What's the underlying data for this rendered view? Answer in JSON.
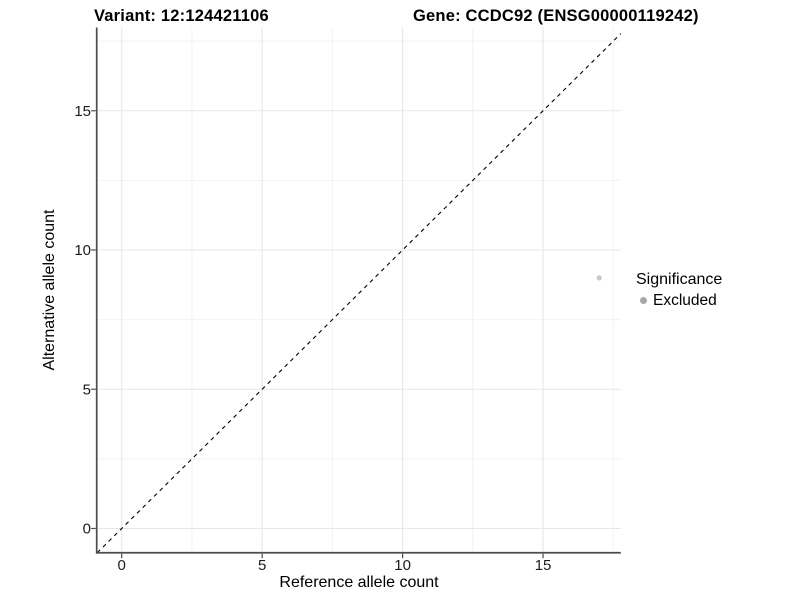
{
  "chart_data": {
    "type": "scatter",
    "title_left": "Variant: 12:124421106",
    "title_right": "Gene: CCDC92 (ENSG00000119242)",
    "xlabel": "Reference allele count",
    "ylabel": "Alternative allele count",
    "x_ticks": [
      0,
      5,
      10,
      15
    ],
    "y_ticks": [
      0,
      5,
      10,
      15
    ],
    "xlim": [
      -0.89,
      17.77
    ],
    "ylim": [
      -0.87,
      17.99
    ],
    "grid": {
      "major_color": "#e7e7e7",
      "minor_color": "#f2f2f2",
      "background": "#ffffff"
    },
    "identity_line": {
      "equation": "y = x",
      "style": "dashed",
      "color": "#000000"
    },
    "points": [
      {
        "x": 17,
        "y": 9,
        "significance": "Excluded",
        "color": "#c8c8c8",
        "radius": 2.6
      }
    ],
    "legend": {
      "title": "Significance",
      "position": "right-center",
      "entries": [
        {
          "label": "Excluded",
          "marker": "circle",
          "color": "#a8a8a8"
        }
      ]
    },
    "axis_style": {
      "line_color": "#4b4b4b",
      "tick_color": "#4b4b4b",
      "text_color": "#1c1c1c"
    }
  }
}
